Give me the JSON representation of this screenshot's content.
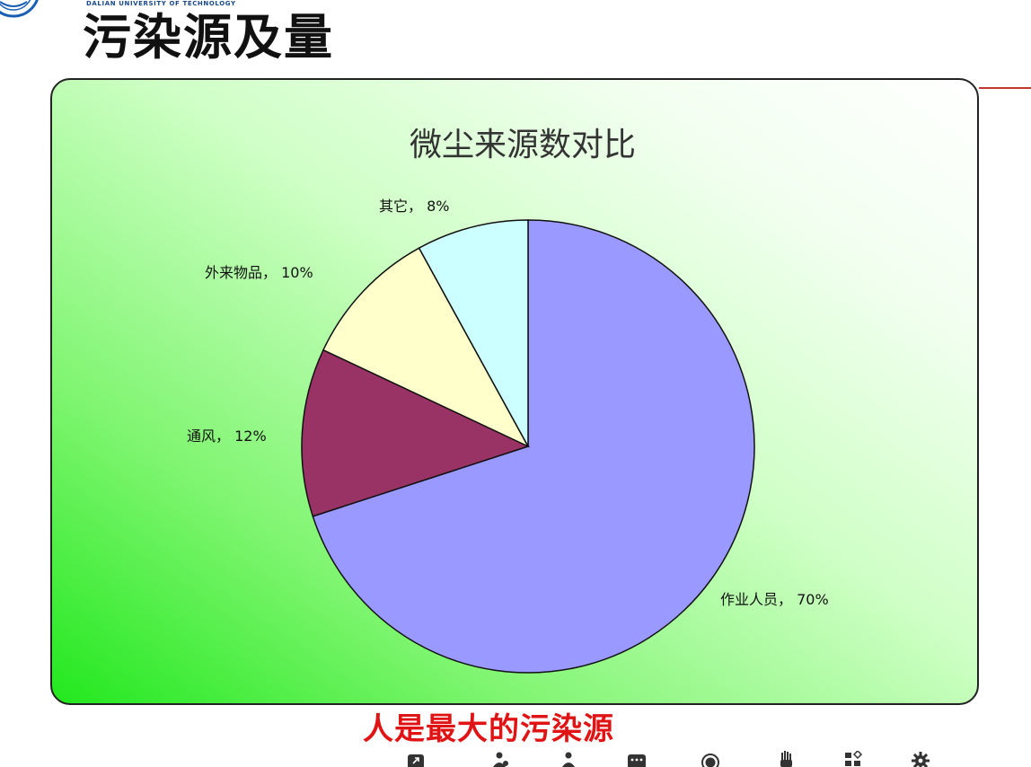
{
  "header": {
    "university_name": "DALIAN UNIVERSITY OF TECHNOLOGY",
    "slide_title": "污染源及量"
  },
  "chart_data": {
    "type": "pie",
    "title": "微尘来源数对比",
    "slices": [
      {
        "label": "作业人员",
        "value": 70,
        "display": "作业人员， 70%",
        "color": "#9999ff"
      },
      {
        "label": "通风",
        "value": 12,
        "display": "通风， 12%",
        "color": "#993366"
      },
      {
        "label": "外来物品",
        "value": 10,
        "display": "外来物品， 10%",
        "color": "#ffffcc"
      },
      {
        "label": "其它",
        "value": 8,
        "display": "其它， 8%",
        "color": "#ccffff"
      }
    ]
  },
  "caption": "人是最大的污染源",
  "toolbar": {
    "icons": [
      "share-icon",
      "add-user-icon",
      "user-icon",
      "chat-icon",
      "record-icon",
      "raise-hand-icon",
      "apps-icon",
      "settings-icon"
    ]
  }
}
